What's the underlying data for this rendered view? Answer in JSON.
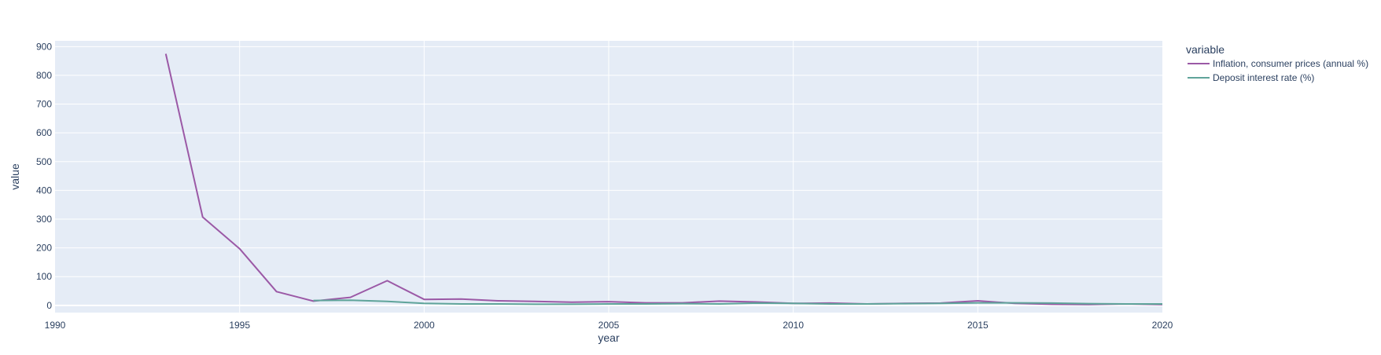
{
  "chart_data": {
    "type": "line",
    "title": "",
    "xlabel": "year",
    "ylabel": "value",
    "xlim": [
      1990,
      2020
    ],
    "ylim": [
      -25,
      920
    ],
    "x_ticks": [
      1990,
      1995,
      2000,
      2005,
      2010,
      2015,
      2020
    ],
    "y_ticks": [
      0,
      100,
      200,
      300,
      400,
      500,
      600,
      700,
      800,
      900
    ],
    "grid": true,
    "legend": {
      "title": "variable",
      "placement": "right"
    },
    "colors": {
      "plot_bg": "#e5ecf6",
      "grid": "#ffffff",
      "text": "#2a3f5f"
    },
    "series": [
      {
        "name": "Inflation, consumer prices (annual %)",
        "color": "#9b59a6",
        "x": [
          1993,
          1994,
          1995,
          1996,
          1997,
          1998,
          1999,
          2000,
          2001,
          2002,
          2003,
          2004,
          2005,
          2006,
          2007,
          2008,
          2009,
          2010,
          2011,
          2012,
          2013,
          2014,
          2015,
          2016,
          2017,
          2018,
          2019,
          2020
        ],
        "y": [
          875,
          307,
          197,
          48,
          15,
          28,
          86,
          21,
          22,
          16,
          14,
          11,
          13,
          9,
          9,
          15,
          12,
          7,
          8,
          5,
          7,
          8,
          16,
          7,
          4,
          3,
          5,
          3
        ]
      },
      {
        "name": "Deposit interest rate (%)",
        "color": "#5fa49a",
        "x": [
          1997,
          1998,
          1999,
          2000,
          2001,
          2002,
          2003,
          2004,
          2005,
          2006,
          2007,
          2008,
          2009,
          2010,
          2011,
          2012,
          2013,
          2014,
          2015,
          2016,
          2017,
          2018,
          2019,
          2020
        ],
        "y": [
          17,
          18,
          14,
          7,
          5,
          5,
          4,
          4,
          5,
          5,
          6,
          5,
          8,
          7,
          5,
          5,
          6,
          7,
          9,
          9,
          8,
          6,
          5,
          5
        ]
      }
    ]
  }
}
